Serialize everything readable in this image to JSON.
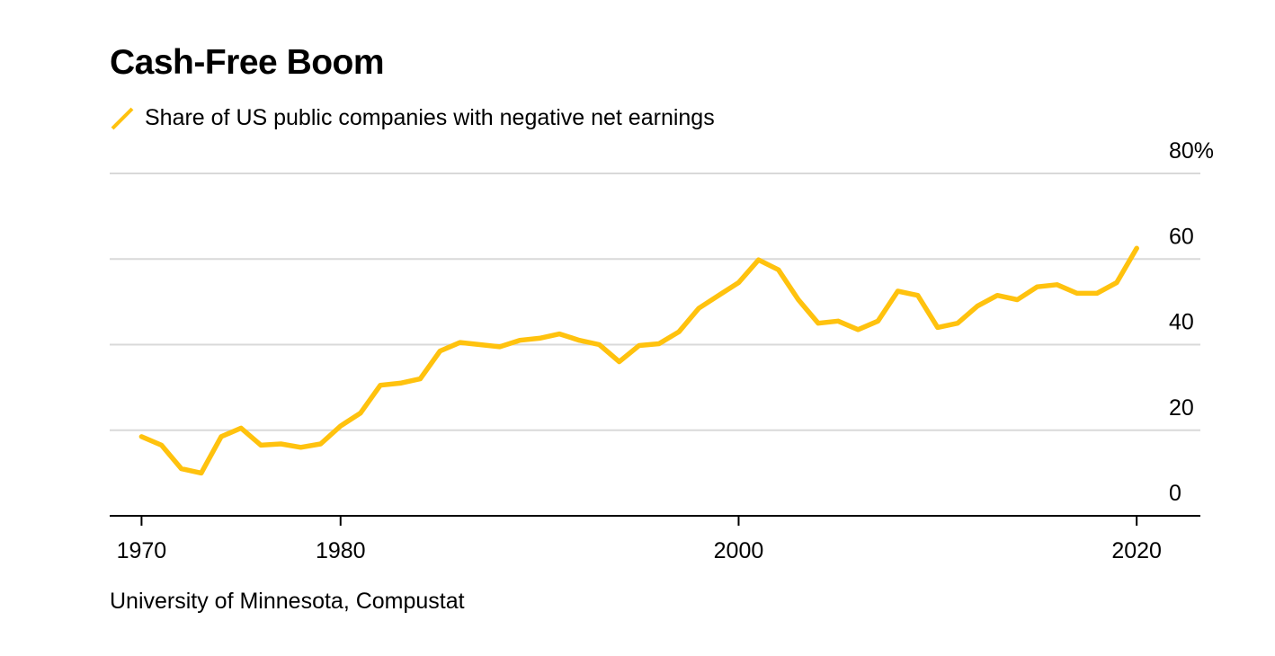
{
  "title": "Cash-Free Boom",
  "source": "University of Minnesota, Compustat",
  "colors": {
    "series": "#FFC20E",
    "grid": "#D9D9D9",
    "axis": "#000000"
  },
  "chart_data": {
    "type": "line",
    "title": "Cash-Free Boom",
    "xlabel": "",
    "ylabel": "",
    "xlim": [
      1968.4,
      2023.2
    ],
    "ylim": [
      0,
      80
    ],
    "x_ticks": [
      1970,
      1980,
      2000,
      2020
    ],
    "x_tick_labels": [
      "1970",
      "1980",
      "2000",
      "2020"
    ],
    "y_ticks": [
      0,
      20,
      40,
      60,
      80
    ],
    "y_tick_labels": [
      "0",
      "20",
      "40",
      "60",
      "80%"
    ],
    "grid": true,
    "legend_position": "top-left",
    "series": [
      {
        "name": "Share of US public companies with negative net earnings",
        "color": "#FFC20E",
        "x": [
          1970,
          1971,
          1972,
          1973,
          1974,
          1975,
          1976,
          1977,
          1978,
          1979,
          1980,
          1981,
          1982,
          1983,
          1984,
          1985,
          1986,
          1987,
          1988,
          1989,
          1990,
          1991,
          1992,
          1993,
          1994,
          1995,
          1996,
          1997,
          1998,
          1999,
          2000,
          2001,
          2002,
          2003,
          2004,
          2005,
          2006,
          2007,
          2008,
          2009,
          2010,
          2011,
          2012,
          2013,
          2014,
          2015,
          2016,
          2017,
          2018,
          2019,
          2020
        ],
        "y": [
          18.5,
          16.5,
          11,
          10,
          18.5,
          20.5,
          16.5,
          16.8,
          16,
          16.8,
          21,
          24,
          30.5,
          31,
          32,
          38.5,
          40.5,
          40,
          39.5,
          41,
          41.5,
          42.5,
          41,
          40,
          36,
          39.8,
          40.2,
          43,
          48.5,
          51.5,
          54.5,
          59.8,
          57.5,
          50.5,
          45,
          45.5,
          43.5,
          45.5,
          52.5,
          51.5,
          44,
          45,
          49,
          51.5,
          50.5,
          53.5,
          54,
          52,
          52,
          54.5,
          62.5
        ]
      }
    ]
  }
}
